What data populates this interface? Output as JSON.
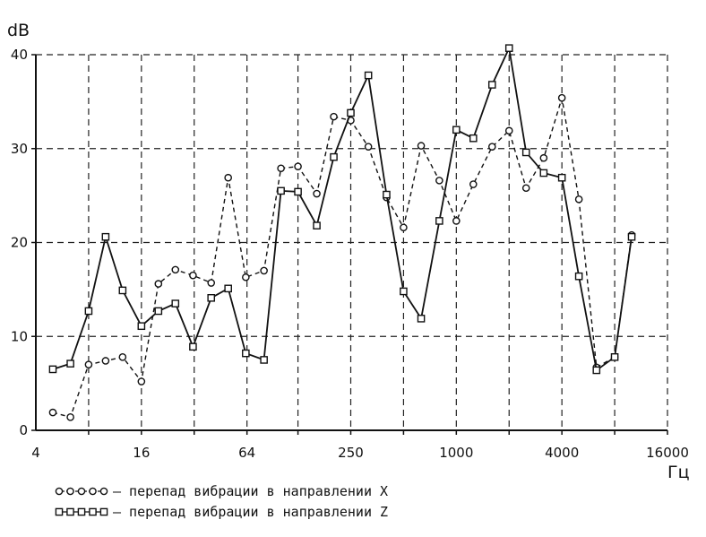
{
  "chart_data": {
    "type": "line",
    "title": "",
    "xlabel": "Гц",
    "ylabel": "dB",
    "x_scale": "log2",
    "xlim": [
      4,
      16000
    ],
    "ylim": [
      0,
      40
    ],
    "x_ticks": [
      {
        "value": 4,
        "label": "4"
      },
      {
        "value": 16,
        "label": "16"
      },
      {
        "value": 64,
        "label": "64"
      },
      {
        "value": 250,
        "label": "250"
      },
      {
        "value": 1000,
        "label": "1000"
      },
      {
        "value": 4000,
        "label": "4000"
      },
      {
        "value": 16000,
        "label": "16000"
      }
    ],
    "x_minor_ticks": [
      8,
      32,
      125,
      500,
      2000,
      8000
    ],
    "y_ticks": [
      0,
      10,
      20,
      30,
      40
    ],
    "grid": "dashed",
    "legend_position": "bottom-left",
    "series": [
      {
        "name": "перепад вибрации в направлении X",
        "line_style": "dashed",
        "marker": "circle",
        "x": [
          5,
          6.3,
          8,
          10,
          12.5,
          16,
          20,
          25,
          31.5,
          40,
          50,
          63,
          80,
          100,
          125,
          160,
          200,
          250,
          315,
          400,
          500,
          630,
          800,
          1000,
          1250,
          1600,
          2000,
          2500,
          3150,
          4000,
          5000,
          6300,
          8000,
          10000
        ],
        "y": [
          1.9,
          1.4,
          7.0,
          7.4,
          7.8,
          5.2,
          15.6,
          17.1,
          16.5,
          15.7,
          26.9,
          16.3,
          17.0,
          27.9,
          28.1,
          25.2,
          33.4,
          33.0,
          30.2,
          24.8,
          21.6,
          30.3,
          26.6,
          22.3,
          26.2,
          30.2,
          31.9,
          25.8,
          29.0,
          35.4,
          24.6,
          6.7,
          7.8,
          20.8
        ]
      },
      {
        "name": "перепад вибрации в направлении Z",
        "line_style": "solid",
        "marker": "square",
        "x": [
          5,
          6.3,
          8,
          10,
          12.5,
          16,
          20,
          25,
          31.5,
          40,
          50,
          63,
          80,
          100,
          125,
          160,
          200,
          250,
          315,
          400,
          500,
          630,
          800,
          1000,
          1250,
          1600,
          2000,
          2500,
          3150,
          4000,
          5000,
          6300,
          8000,
          10000
        ],
        "y": [
          6.5,
          7.1,
          12.7,
          20.6,
          14.9,
          11.1,
          12.7,
          13.5,
          8.9,
          14.1,
          15.1,
          8.2,
          7.5,
          25.5,
          25.4,
          21.8,
          29.1,
          33.8,
          37.8,
          25.1,
          14.8,
          11.9,
          22.3,
          32.0,
          31.1,
          36.8,
          40.7,
          29.6,
          27.4,
          26.9,
          16.4,
          6.4,
          7.8,
          20.6
        ]
      }
    ]
  },
  "legend": [
    {
      "marker_glyphs": "ooooo",
      "text": "– перепад вибрации в направлении X"
    },
    {
      "marker_glyphs": "□□□□□",
      "text": "– перепад вибрации в направлении Z"
    }
  ]
}
